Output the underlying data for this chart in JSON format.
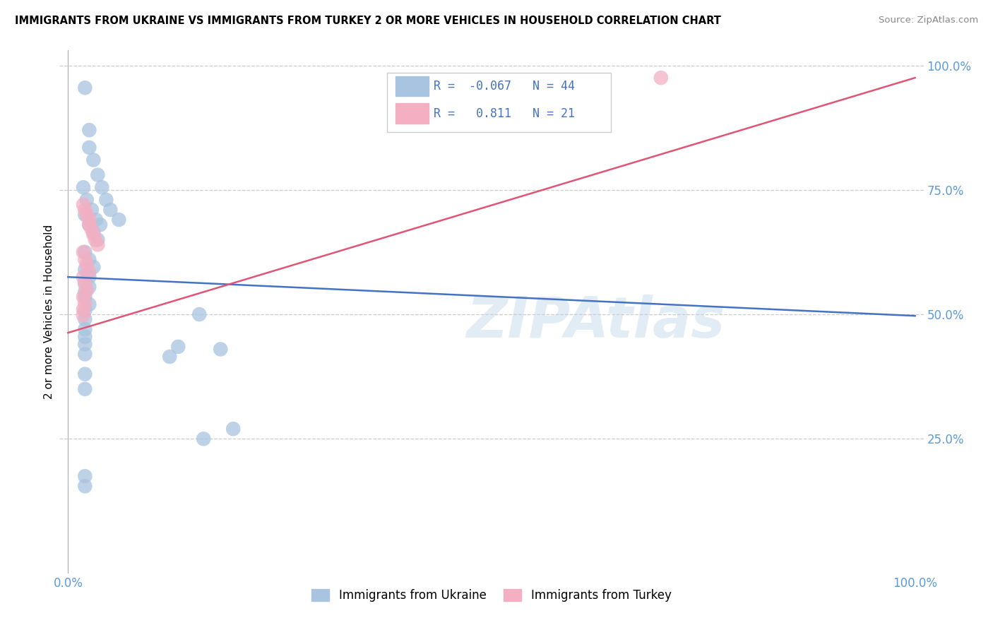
{
  "title": "IMMIGRANTS FROM UKRAINE VS IMMIGRANTS FROM TURKEY 2 OR MORE VEHICLES IN HOUSEHOLD CORRELATION CHART",
  "source": "Source: ZipAtlas.com",
  "ylabel": "2 or more Vehicles in Household",
  "legend_label_ukraine": "Immigrants from Ukraine",
  "legend_label_turkey": "Immigrants from Turkey",
  "R_ukraine": -0.067,
  "N_ukraine": 44,
  "R_turkey": 0.811,
  "N_turkey": 21,
  "ukraine_color": "#a8c4e0",
  "turkey_color": "#f4afc3",
  "ukraine_line_color": "#4472c4",
  "turkey_line_color": "#e05575",
  "watermark": "ZIPAtlas",
  "xlim": [
    0.0,
    1.0
  ],
  "ylim": [
    0.0,
    1.0
  ],
  "ukraine_x": [
    0.02,
    0.025,
    0.025,
    0.03,
    0.035,
    0.04,
    0.045,
    0.05,
    0.06,
    0.018,
    0.022,
    0.028,
    0.033,
    0.038,
    0.02,
    0.025,
    0.03,
    0.035,
    0.02,
    0.025,
    0.03,
    0.02,
    0.025,
    0.02,
    0.025,
    0.02,
    0.02,
    0.025,
    0.02,
    0.155,
    0.02,
    0.02,
    0.02,
    0.02,
    0.13,
    0.18,
    0.02,
    0.12,
    0.02,
    0.02,
    0.195,
    0.16,
    0.02,
    0.02
  ],
  "ukraine_y": [
    0.955,
    0.87,
    0.835,
    0.81,
    0.78,
    0.755,
    0.73,
    0.71,
    0.69,
    0.755,
    0.73,
    0.71,
    0.69,
    0.68,
    0.7,
    0.68,
    0.665,
    0.65,
    0.625,
    0.61,
    0.595,
    0.59,
    0.575,
    0.565,
    0.555,
    0.545,
    0.535,
    0.52,
    0.508,
    0.5,
    0.49,
    0.47,
    0.455,
    0.44,
    0.435,
    0.43,
    0.42,
    0.415,
    0.38,
    0.35,
    0.27,
    0.25,
    0.175,
    0.155
  ],
  "turkey_x": [
    0.018,
    0.02,
    0.022,
    0.025,
    0.025,
    0.028,
    0.03,
    0.032,
    0.035,
    0.018,
    0.02,
    0.022,
    0.025,
    0.018,
    0.02,
    0.022,
    0.018,
    0.02,
    0.018,
    0.018,
    0.7
  ],
  "turkey_y": [
    0.72,
    0.71,
    0.7,
    0.69,
    0.68,
    0.67,
    0.66,
    0.65,
    0.64,
    0.625,
    0.61,
    0.6,
    0.585,
    0.575,
    0.56,
    0.548,
    0.535,
    0.522,
    0.51,
    0.498,
    0.975
  ],
  "ukraine_line": {
    "x0": 0.0,
    "y0": 0.575,
    "x1": 1.0,
    "y1": 0.497
  },
  "turkey_line": {
    "x0": 0.0,
    "y0": 0.463,
    "x1": 1.0,
    "y1": 0.975
  }
}
